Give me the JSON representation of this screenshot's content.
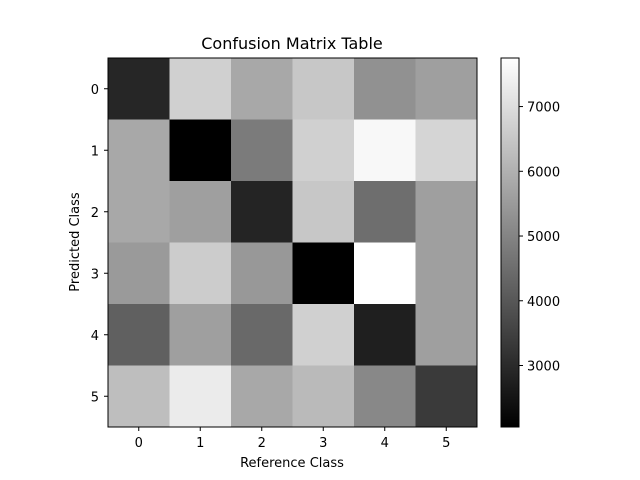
{
  "chart_data": {
    "type": "heatmap",
    "title": "Confusion Matrix Table",
    "xlabel": "Reference Class",
    "ylabel": "Predicted Class",
    "x_categories": [
      "0",
      "1",
      "2",
      "3",
      "4",
      "5"
    ],
    "y_categories": [
      "0",
      "1",
      "2",
      "3",
      "4",
      "5"
    ],
    "values": [
      [
        2900,
        6700,
        5800,
        6500,
        5300,
        5600
      ],
      [
        5800,
        2050,
        4800,
        6700,
        7600,
        6800
      ],
      [
        5800,
        5600,
        2850,
        6500,
        4500,
        5600
      ],
      [
        5500,
        6600,
        5450,
        2050,
        7750,
        5600
      ],
      [
        4200,
        5600,
        4400,
        6700,
        2750,
        5600
      ],
      [
        6300,
        7300,
        5800,
        6200,
        5100,
        3350
      ]
    ],
    "colormap": "gray",
    "vmin": 2050,
    "vmax": 7750,
    "colorbar_ticks": [
      3000,
      4000,
      5000,
      6000,
      7000
    ]
  }
}
